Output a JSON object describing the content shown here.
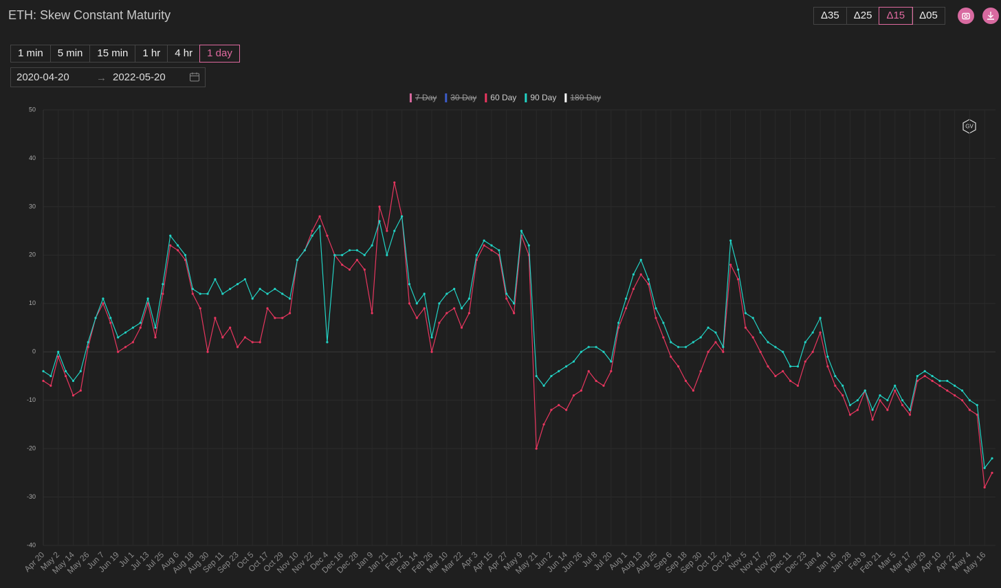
{
  "header": {
    "title": "ETH: Skew Constant Maturity"
  },
  "delta_buttons": {
    "items": [
      "Δ35",
      "Δ25",
      "Δ15",
      "Δ05"
    ],
    "active": 2
  },
  "interval_buttons": {
    "items": [
      "1 min",
      "5 min",
      "15 min",
      "1 hr",
      "4 hr",
      "1 day"
    ],
    "active": 5
  },
  "date_range": {
    "start": "2020-04-20",
    "end": "2022-05-20"
  },
  "chart_data": {
    "type": "line",
    "categories": [
      "Apr 20",
      null,
      "May 2",
      null,
      "May 14",
      null,
      "May 26",
      null,
      "Jun 7",
      null,
      "Jun 19",
      null,
      "Jul 1",
      null,
      "Jul 13",
      null,
      "Jul 25",
      null,
      "Aug 6",
      null,
      "Aug 18",
      null,
      "Aug 30",
      null,
      "Sep 11",
      null,
      "Sep 23",
      null,
      "Oct 5",
      null,
      "Oct 17",
      null,
      "Oct 29",
      null,
      "Nov 10",
      null,
      "Nov 22",
      null,
      "Dec 4",
      null,
      "Dec 16",
      null,
      "Dec 28",
      null,
      "Jan 9",
      null,
      "Jan 21",
      null,
      "Feb 2",
      null,
      "Feb 14",
      null,
      "Feb 26",
      null,
      "Mar 10",
      null,
      "Mar 22",
      null,
      "Apr 3",
      null,
      "Apr 15",
      null,
      "Apr 27",
      null,
      "May 9",
      null,
      "May 21",
      null,
      "Jun 2",
      null,
      "Jun 14",
      null,
      "Jun 26",
      null,
      "Jul 8",
      null,
      "Jul 20",
      null,
      "Aug 1",
      null,
      "Aug 13",
      null,
      "Aug 25",
      null,
      "Sep 6",
      null,
      "Sep 18",
      null,
      "Sep 30",
      null,
      "Oct 12",
      null,
      "Oct 24",
      null,
      "Nov 5",
      null,
      "Nov 17",
      null,
      "Nov 29",
      null,
      "Dec 11",
      null,
      "Dec 23",
      null,
      "Jan 4",
      null,
      "Jan 16",
      null,
      "Jan 28",
      null,
      "Feb 9",
      null,
      "Feb 21",
      null,
      "Mar 5",
      null,
      "Mar 17",
      null,
      "Mar 29",
      null,
      "Apr 10",
      null,
      "Apr 22",
      null,
      "May 4",
      null,
      "May 16",
      null
    ],
    "series": [
      {
        "name": "7 Day",
        "color": "#d96aa0",
        "visible": false
      },
      {
        "name": "30 Day",
        "color": "#3b5bc8",
        "visible": false
      },
      {
        "name": "60 Day",
        "color": "#e8365f",
        "visible": true,
        "values": [
          -6,
          -7,
          -1,
          -5,
          -9,
          -8,
          1,
          7,
          10,
          6,
          0,
          1,
          2,
          5,
          10,
          3,
          12,
          22,
          21,
          19,
          12,
          9,
          0,
          7,
          3,
          5,
          1,
          3,
          2,
          2,
          9,
          7,
          7,
          8,
          19,
          21,
          25,
          28,
          24,
          20,
          18,
          17,
          19,
          17,
          8,
          30,
          25,
          35,
          28,
          10,
          7,
          9,
          0,
          6,
          8,
          9,
          5,
          8,
          19,
          22,
          21,
          20,
          11,
          8,
          24,
          20,
          -20,
          -15,
          -12,
          -11,
          -12,
          -9,
          -8,
          -4,
          -6,
          -7,
          -4,
          5,
          9,
          13,
          16,
          14,
          7,
          3,
          -1,
          -3,
          -6,
          -8,
          -4,
          0,
          2,
          0,
          18,
          15,
          5,
          3,
          0,
          -3,
          -5,
          -4,
          -6,
          -7,
          -2,
          0,
          4,
          -3,
          -7,
          -9,
          -13,
          -12,
          -8,
          -14,
          -10,
          -12,
          -8,
          -11,
          -13,
          -6,
          -5,
          -6,
          -7,
          -8,
          -9,
          -10,
          -12,
          -13,
          -28,
          -25
        ]
      },
      {
        "name": "90 Day",
        "color": "#22d3c5",
        "visible": true,
        "values": [
          -4,
          -5,
          0,
          -4,
          -6,
          -4,
          2,
          7,
          11,
          7,
          3,
          4,
          5,
          6,
          11,
          5,
          14,
          24,
          22,
          20,
          13,
          12,
          12,
          15,
          12,
          13,
          14,
          15,
          11,
          13,
          12,
          13,
          12,
          11,
          19,
          21,
          24,
          26,
          2,
          20,
          20,
          21,
          21,
          20,
          22,
          27,
          20,
          25,
          28,
          14,
          10,
          12,
          3,
          10,
          12,
          13,
          9,
          11,
          20,
          23,
          22,
          21,
          12,
          10,
          25,
          22,
          -5,
          -7,
          -5,
          -4,
          -3,
          -2,
          0,
          1,
          1,
          0,
          -2,
          6,
          11,
          16,
          19,
          15,
          9,
          6,
          2,
          1,
          1,
          2,
          3,
          5,
          4,
          1,
          23,
          17,
          8,
          7,
          4,
          2,
          1,
          0,
          -3,
          -3,
          2,
          4,
          7,
          -1,
          -5,
          -7,
          -11,
          -10,
          -8,
          -12,
          -9,
          -10,
          -7,
          -10,
          -12,
          -5,
          -4,
          -5,
          -6,
          -6,
          -7,
          -8,
          -10,
          -11,
          -24,
          -22
        ]
      },
      {
        "name": "180 Day",
        "color": "#ffffff",
        "visible": false
      }
    ],
    "ylim": [
      -40,
      50
    ],
    "yticks": [
      -40,
      -30,
      -20,
      -10,
      0,
      10,
      20,
      30,
      40,
      50
    ],
    "grid": true
  }
}
